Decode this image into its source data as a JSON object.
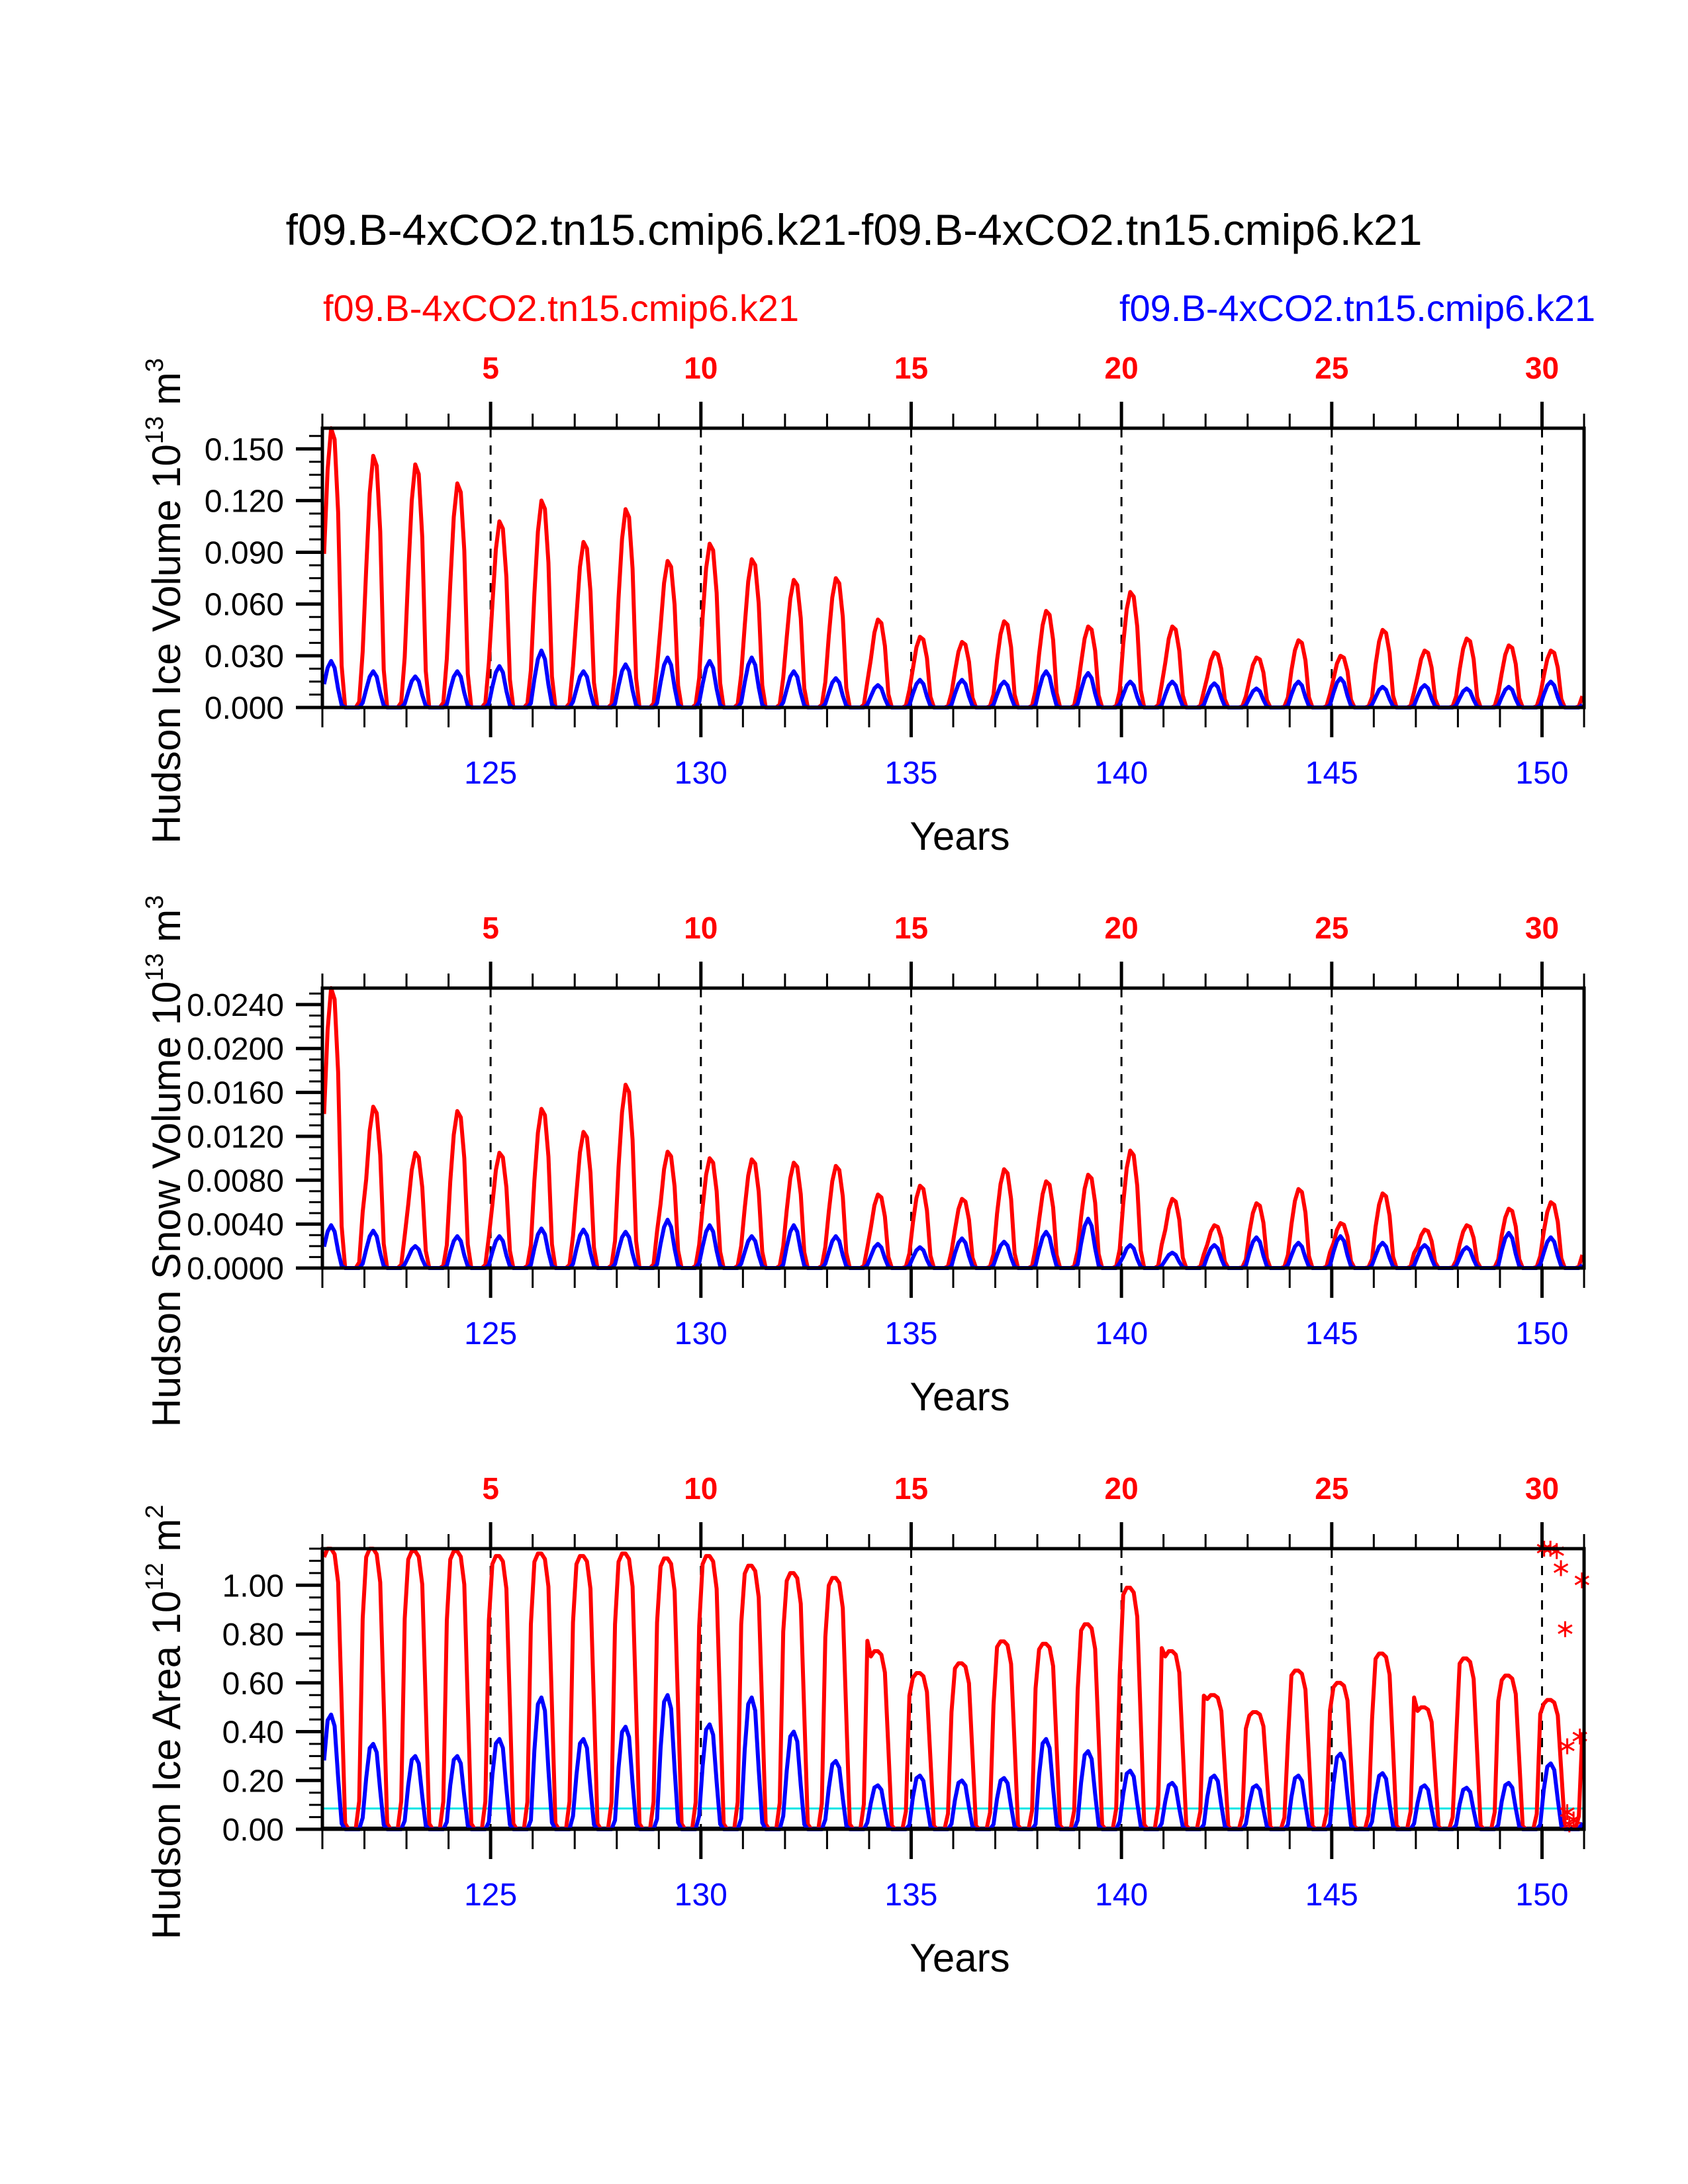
{
  "title": "f09.B-4xCO2.tn15.cmip6.k21-f09.B-4xCO2.tn15.cmip6.k21",
  "legend": {
    "left": {
      "label": "f09.B-4xCO2.tn15.cmip6.k21",
      "color": "#ff0000"
    },
    "right": {
      "label": "f09.B-4xCO2.tn15.cmip6.k21",
      "color": "#0000ff"
    }
  },
  "chart_data": [
    {
      "type": "line",
      "ylabel": "Hudson Ice Volume 10^13 m^3",
      "ylabel_main": "Hudson Ice Volume 10",
      "ylabel_exp": "13",
      "ylabel_unit": " m",
      "ylabel_unit_exp": "3",
      "xlabel": "Years",
      "xlim": [
        121,
        151
      ],
      "ylim": [
        0.0,
        0.162
      ],
      "yticks": [
        0.0,
        0.03,
        0.06,
        0.09,
        0.12,
        0.15
      ],
      "ytick_labels": [
        "0.000",
        "0.030",
        "0.060",
        "0.090",
        "0.120",
        "0.150"
      ],
      "yminor_step": 0.0075,
      "bottom_ticks": [
        125,
        130,
        135,
        140,
        145,
        150
      ],
      "bottom_tick_labels": [
        "125",
        "130",
        "135",
        "140",
        "145",
        "150"
      ],
      "top_ticks": [
        5,
        10,
        15,
        20,
        25,
        30
      ],
      "top_tick_labels": [
        "5",
        "10",
        "15",
        "20",
        "25",
        "30"
      ],
      "top_offset_year": 120,
      "dashed_vlines": [
        125,
        130,
        135,
        140,
        145,
        150
      ],
      "series": [
        {
          "name": "f09.B-4xCO2.tn15.cmip6.k21 (red)",
          "color": "#ff0000",
          "annual_peaks": [
            0.162,
            0.146,
            0.141,
            0.13,
            0.108,
            0.12,
            0.096,
            0.115,
            0.085,
            0.095,
            0.086,
            0.074,
            0.075,
            0.051,
            0.041,
            0.038,
            0.05,
            0.056,
            0.047,
            0.067,
            0.047,
            0.032,
            0.029,
            0.039,
            0.03,
            0.045,
            0.033,
            0.04,
            0.036,
            0.033
          ]
        },
        {
          "name": "f09.B-4xCO2.tn15.cmip6.k21 (blue)",
          "color": "#0000ff",
          "annual_peaks": [
            0.027,
            0.021,
            0.018,
            0.021,
            0.024,
            0.033,
            0.021,
            0.025,
            0.029,
            0.027,
            0.029,
            0.021,
            0.017,
            0.013,
            0.016,
            0.016,
            0.015,
            0.021,
            0.02,
            0.015,
            0.015,
            0.014,
            0.011,
            0.015,
            0.017,
            0.012,
            0.013,
            0.011,
            0.012,
            0.015
          ]
        }
      ]
    },
    {
      "type": "line",
      "ylabel": "Hudson Snow Volume 10^13 m^3",
      "ylabel_main": "Hudson Snow Volume 10",
      "ylabel_exp": "13",
      "ylabel_unit": " m",
      "ylabel_unit_exp": "3",
      "xlabel": "Years",
      "xlim": [
        121,
        151
      ],
      "ylim": [
        0.0,
        0.0255
      ],
      "yticks": [
        0.0,
        0.004,
        0.008,
        0.012,
        0.016,
        0.02,
        0.024
      ],
      "ytick_labels": [
        "0.0000",
        "0.0040",
        "0.0080",
        "0.0120",
        "0.0160",
        "0.0200",
        "0.0240"
      ],
      "yminor_step": 0.001,
      "bottom_ticks": [
        125,
        130,
        135,
        140,
        145,
        150
      ],
      "bottom_tick_labels": [
        "125",
        "130",
        "135",
        "140",
        "145",
        "150"
      ],
      "top_ticks": [
        5,
        10,
        15,
        20,
        25,
        30
      ],
      "top_tick_labels": [
        "5",
        "10",
        "15",
        "20",
        "25",
        "30"
      ],
      "top_offset_year": 120,
      "dashed_vlines": [
        125,
        130,
        135,
        140,
        145,
        150
      ],
      "series": [
        {
          "name": "f09.B-4xCO2.tn15.cmip6.k21 (red)",
          "color": "#ff0000",
          "annual_peaks": [
            0.0255,
            0.0147,
            0.0105,
            0.0143,
            0.0105,
            0.0145,
            0.0124,
            0.0167,
            0.0106,
            0.01,
            0.0099,
            0.0096,
            0.0093,
            0.0067,
            0.0075,
            0.0063,
            0.009,
            0.0079,
            0.0085,
            0.0107,
            0.0063,
            0.0039,
            0.0059,
            0.0072,
            0.0041,
            0.0068,
            0.0035,
            0.0039,
            0.0054,
            0.006
          ]
        },
        {
          "name": "f09.B-4xCO2.tn15.cmip6.k21 (blue)",
          "color": "#0000ff",
          "annual_peaks": [
            0.0039,
            0.0034,
            0.002,
            0.0029,
            0.0029,
            0.0036,
            0.0035,
            0.0033,
            0.0044,
            0.0039,
            0.0029,
            0.0039,
            0.0029,
            0.0022,
            0.0019,
            0.0027,
            0.0024,
            0.0033,
            0.0045,
            0.0021,
            0.0014,
            0.0021,
            0.0028,
            0.0023,
            0.0029,
            0.0023,
            0.0021,
            0.0019,
            0.0032,
            0.0028
          ]
        }
      ]
    },
    {
      "type": "line",
      "ylabel": "Hudson Ice Area 10^12 m^2",
      "ylabel_main": "Hudson Ice Area 10",
      "ylabel_exp": "12",
      "ylabel_unit": " m",
      "ylabel_unit_exp": "2",
      "xlabel": "Years",
      "xlim": [
        121,
        151
      ],
      "ylim": [
        0.0,
        1.15
      ],
      "yticks": [
        0.0,
        0.2,
        0.4,
        0.6,
        0.8,
        1.0
      ],
      "ytick_labels": [
        "0.00",
        "0.20",
        "0.40",
        "0.60",
        "0.80",
        "1.00"
      ],
      "yminor_step": 0.05,
      "bottom_ticks": [
        125,
        130,
        135,
        140,
        145,
        150
      ],
      "bottom_tick_labels": [
        "125",
        "130",
        "135",
        "140",
        "145",
        "150"
      ],
      "top_ticks": [
        5,
        10,
        15,
        20,
        25,
        30
      ],
      "top_tick_labels": [
        "5",
        "10",
        "15",
        "20",
        "25",
        "30"
      ],
      "top_offset_year": 120,
      "dashed_vlines": [
        125,
        130,
        135,
        140,
        145,
        150
      ],
      "hlines": [
        {
          "y": 0.085,
          "color": "#00e5e5"
        },
        {
          "y": 0.008,
          "color": "#000000"
        }
      ],
      "series": [
        {
          "name": "f09.B-4xCO2.tn15.cmip6.k21 (red)",
          "color": "#ff0000",
          "annual_peaks": [
            1.15,
            1.15,
            1.14,
            1.14,
            1.12,
            1.13,
            1.12,
            1.13,
            1.11,
            1.12,
            1.08,
            1.05,
            1.03,
            0.73,
            0.64,
            0.68,
            0.77,
            0.76,
            0.84,
            0.99,
            0.73,
            0.55,
            0.48,
            0.65,
            0.6,
            0.72,
            0.5,
            0.7,
            0.63,
            0.53
          ]
        },
        {
          "name": "f09.B-4xCO2.tn15.cmip6.k21 (blue)",
          "color": "#0000ff",
          "annual_peaks": [
            0.47,
            0.35,
            0.3,
            0.3,
            0.37,
            0.54,
            0.37,
            0.42,
            0.55,
            0.43,
            0.54,
            0.4,
            0.28,
            0.18,
            0.22,
            0.2,
            0.21,
            0.37,
            0.32,
            0.24,
            0.19,
            0.22,
            0.18,
            0.22,
            0.31,
            0.23,
            0.18,
            0.17,
            0.19,
            0.27
          ]
        }
      ],
      "markers": {
        "symbol": "asterisk",
        "color": "#ff0000",
        "points": [
          {
            "x": 150.05,
            "y": 1.15
          },
          {
            "x": 150.2,
            "y": 1.15
          },
          {
            "x": 150.35,
            "y": 1.14
          },
          {
            "x": 150.45,
            "y": 1.07
          },
          {
            "x": 150.55,
            "y": 0.82
          },
          {
            "x": 150.95,
            "y": 1.02
          },
          {
            "x": 150.6,
            "y": 0.34
          },
          {
            "x": 150.9,
            "y": 0.38
          },
          {
            "x": 150.6,
            "y": 0.07
          },
          {
            "x": 150.75,
            "y": 0.04
          },
          {
            "x": 150.65,
            "y": 0.02
          }
        ]
      }
    }
  ]
}
